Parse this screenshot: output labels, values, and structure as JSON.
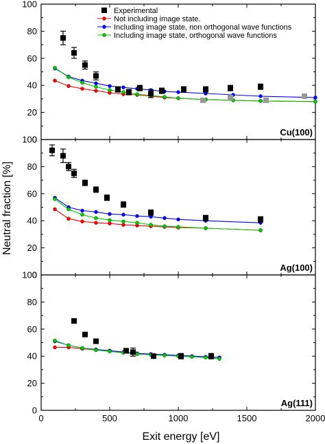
{
  "chart_data": {
    "type": "scatter",
    "xlabel": "Exit energy [eV]",
    "ylabel": "Neutral fraction [%]",
    "xlim": [
      0,
      2000
    ],
    "ylim": [
      0,
      100
    ],
    "x_ticks": [
      "0",
      "500",
      "1000",
      "1500",
      "2000"
    ],
    "y_ticks": [
      "0",
      "20",
      "40",
      "60",
      "80",
      "100"
    ],
    "legend": {
      "placement": "top-center of first panel",
      "entries": [
        {
          "label": "Experimental",
          "marker": "square",
          "color": "#000000"
        },
        {
          "label": "Not including image state.",
          "marker": "circle-line",
          "color": "#ff0000"
        },
        {
          "label": "Including image state, non orthogonal wave functions",
          "marker": "circle-line",
          "color": "#0000ff"
        },
        {
          "label": "Including image state, orthogonal wave functions",
          "marker": "circle-line",
          "color": "#00cc00"
        }
      ]
    },
    "panels": [
      {
        "label": "Cu(100)",
        "experimental": [
          {
            "x": 160,
            "y": 75,
            "err": 5
          },
          {
            "x": 240,
            "y": 64,
            "err": 4
          },
          {
            "x": 320,
            "y": 55,
            "err": 3
          },
          {
            "x": 400,
            "y": 47,
            "err": 3
          },
          {
            "x": 560,
            "y": 37,
            "err": 2
          },
          {
            "x": 640,
            "y": 35,
            "err": 2
          },
          {
            "x": 720,
            "y": 38,
            "err": 2
          },
          {
            "x": 800,
            "y": 34,
            "err": 3
          },
          {
            "x": 880,
            "y": 36,
            "err": 2
          },
          {
            "x": 1040,
            "y": 37,
            "err": 2
          },
          {
            "x": 1200,
            "y": 37,
            "err": 2
          },
          {
            "x": 1380,
            "y": 38,
            "err": 2
          },
          {
            "x": 1600,
            "y": 39,
            "err": 2
          }
        ],
        "experimental_gray": [
          {
            "x": 1180,
            "y": 29,
            "err": 1
          },
          {
            "x": 1380,
            "y": 31,
            "err": 1
          },
          {
            "x": 1640,
            "y": 29,
            "err": 1
          },
          {
            "x": 1920,
            "y": 32,
            "err": 1
          }
        ],
        "series": [
          {
            "name": "Not including image state.",
            "color": "#ff0000",
            "x": [
              100,
              200,
              300,
              400,
              500,
              600,
              700,
              800,
              900,
              1000,
              1200,
              1400,
              1600,
              2000
            ],
            "y": [
              43.5,
              39.5,
              37.5,
              36,
              34.5,
              33.5,
              33,
              32,
              31,
              30.5,
              29.5,
              29,
              28.5,
              28
            ]
          },
          {
            "name": "Including image state, non orthogonal wave functions",
            "color": "#0000ff",
            "x": [
              100,
              200,
              300,
              400,
              500,
              600,
              700,
              800,
              900,
              1000,
              1200,
              1400,
              1600,
              2000
            ],
            "y": [
              52.5,
              46.5,
              43.5,
              41.5,
              39.5,
              38.5,
              37.5,
              36.5,
              35.5,
              35,
              34,
              33,
              32,
              31
            ]
          },
          {
            "name": "Including image state, orthogonal wave functions",
            "color": "#00cc00",
            "x": [
              100,
              200,
              300,
              400,
              500,
              600,
              700,
              800,
              900,
              1000,
              1200,
              1400,
              1600,
              2000
            ],
            "y": [
              53,
              46,
              42,
              39,
              36.5,
              35,
              33.5,
              32.5,
              31.5,
              30.5,
              29.5,
              29,
              28.5,
              28
            ]
          }
        ]
      },
      {
        "label": "Ag(100)",
        "experimental": [
          {
            "x": 80,
            "y": 92,
            "err": 4
          },
          {
            "x": 160,
            "y": 88,
            "err": 5
          },
          {
            "x": 200,
            "y": 80,
            "err": 3
          },
          {
            "x": 240,
            "y": 75,
            "err": 3
          },
          {
            "x": 320,
            "y": 68,
            "err": 2
          },
          {
            "x": 400,
            "y": 63,
            "err": 2
          },
          {
            "x": 480,
            "y": 57,
            "err": 2
          },
          {
            "x": 600,
            "y": 52,
            "err": 2
          },
          {
            "x": 800,
            "y": 46,
            "err": 2
          },
          {
            "x": 1200,
            "y": 42,
            "err": 2
          },
          {
            "x": 1600,
            "y": 41,
            "err": 2
          }
        ],
        "experimental_gray": [],
        "series": [
          {
            "name": "Not including image state.",
            "color": "#ff0000",
            "x": [
              100,
              200,
              300,
              400,
              500,
              600,
              700,
              800,
              900,
              1000,
              1200,
              1600
            ],
            "y": [
              48.5,
              41.5,
              39.5,
              38.5,
              38,
              37,
              36.5,
              36,
              35.5,
              35,
              34.5,
              33
            ]
          },
          {
            "name": "Including image state, non orthogonal wave functions",
            "color": "#0000ff",
            "x": [
              100,
              200,
              300,
              400,
              500,
              600,
              700,
              800,
              900,
              1000,
              1200,
              1600
            ],
            "y": [
              57,
              50,
              47.5,
              46.5,
              45,
              44.5,
              43.5,
              43,
              42,
              41,
              40,
              38.5
            ]
          },
          {
            "name": "Including image state, orthogonal wave functions",
            "color": "#00cc00",
            "x": [
              100,
              200,
              300,
              400,
              500,
              600,
              700,
              800,
              900,
              1000,
              1200,
              1600
            ],
            "y": [
              56,
              48.5,
              44.5,
              42,
              40.5,
              39.5,
              38.5,
              37,
              36,
              35.5,
              34.5,
              33
            ]
          }
        ]
      },
      {
        "label": "Ag(111)",
        "experimental": [
          {
            "x": 240,
            "y": 66,
            "err": 1
          },
          {
            "x": 320,
            "y": 56,
            "err": 1
          },
          {
            "x": 400,
            "y": 51,
            "err": 1
          },
          {
            "x": 620,
            "y": 44,
            "err": 1
          },
          {
            "x": 670,
            "y": 43,
            "err": 3
          },
          {
            "x": 820,
            "y": 40,
            "err": 1
          },
          {
            "x": 1020,
            "y": 40,
            "err": 2
          },
          {
            "x": 1240,
            "y": 40,
            "err": 2
          }
        ],
        "experimental_gray": [],
        "series": [
          {
            "name": "Not including image state.",
            "color": "#ff0000",
            "x": [
              100,
              200,
              300,
              400,
              500,
              600,
              700,
              800,
              900,
              1000,
              1100,
              1200,
              1300
            ],
            "y": [
              46.5,
              46.5,
              45.5,
              44.5,
              44,
              43,
              42,
              41.5,
              41,
              40.5,
              40,
              39.5,
              39
            ]
          },
          {
            "name": "Including image state, non orthogonal wave functions",
            "color": "#0000ff",
            "x": [
              100,
              200,
              300,
              400,
              500,
              600,
              700,
              800,
              900,
              1000,
              1100,
              1200,
              1300
            ],
            "y": [
              51,
              48,
              46,
              45,
              44,
              43,
              42,
              41.5,
              41,
              40.5,
              40,
              39.5,
              39
            ]
          },
          {
            "name": "Including image state, orthogonal wave functions",
            "color": "#00cc00",
            "x": [
              100,
              200,
              300,
              400,
              500,
              600,
              700,
              800,
              900,
              1000,
              1100,
              1200,
              1300
            ],
            "y": [
              51.5,
              48,
              46,
              44.5,
              43.5,
              42.5,
              41.5,
              41,
              40.5,
              40,
              39.5,
              39,
              38
            ]
          }
        ]
      }
    ]
  }
}
